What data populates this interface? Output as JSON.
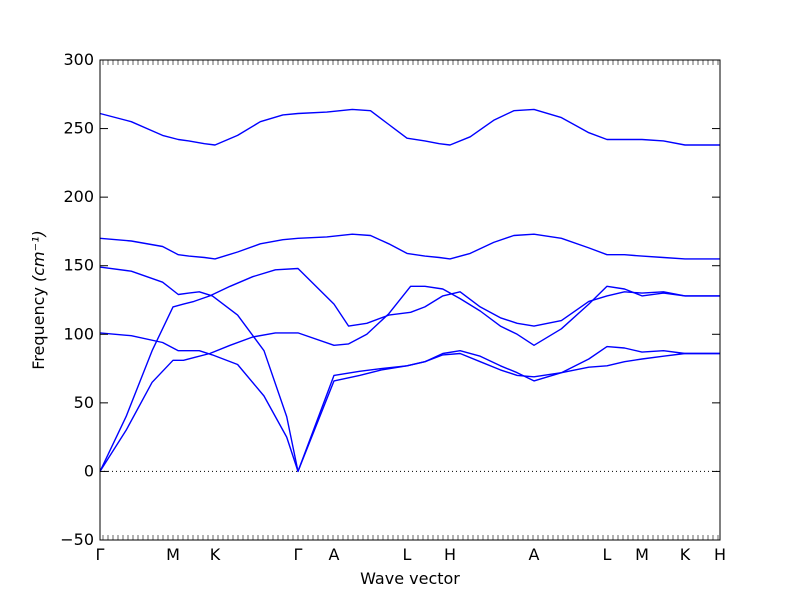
{
  "chart_data": {
    "type": "line",
    "xlabel": "Wave vector",
    "ylabel": "Frequency",
    "ylabel_unit": "(cm⁻¹)",
    "ylim": [
      -50,
      300
    ],
    "yticks": [
      -50,
      0,
      50,
      100,
      150,
      200,
      250,
      300
    ],
    "x_high_symmetry": [
      "Γ",
      "M",
      "K",
      "Γ",
      "A",
      "L",
      "H",
      "A",
      "L",
      "M",
      "K",
      "H"
    ],
    "zero_line": true,
    "grid": false,
    "line_color": "#0000ff",
    "series": [
      {
        "values": [
          [
            0,
            261
          ],
          [
            0.3,
            255
          ],
          [
            0.6,
            245
          ],
          [
            0.8,
            242
          ],
          [
            1.0,
            241
          ],
          [
            1.3,
            239
          ],
          [
            1.5,
            238
          ],
          [
            1.8,
            245
          ],
          [
            2.1,
            255
          ],
          [
            2.4,
            260
          ],
          [
            2.6,
            261
          ],
          [
            2.8,
            262
          ],
          [
            3.1,
            264
          ],
          [
            3.35,
            263
          ],
          [
            3.6,
            253
          ],
          [
            3.85,
            243
          ],
          [
            4.1,
            241
          ],
          [
            4.3,
            239
          ],
          [
            4.45,
            238
          ],
          [
            4.75,
            244
          ],
          [
            5.1,
            256
          ],
          [
            5.4,
            263
          ],
          [
            5.7,
            264
          ],
          [
            6.0,
            258
          ],
          [
            6.3,
            247
          ],
          [
            6.5,
            242
          ],
          [
            6.8,
            242
          ],
          [
            7.1,
            242
          ],
          [
            7.4,
            241
          ],
          [
            7.7,
            238
          ],
          [
            8.0,
            238
          ]
        ]
      },
      {
        "values": [
          [
            0,
            170
          ],
          [
            0.3,
            168
          ],
          [
            0.6,
            164
          ],
          [
            0.8,
            158
          ],
          [
            1.0,
            157
          ],
          [
            1.3,
            156
          ],
          [
            1.5,
            155
          ],
          [
            1.8,
            160
          ],
          [
            2.1,
            166
          ],
          [
            2.4,
            169
          ],
          [
            2.6,
            170
          ],
          [
            2.8,
            171
          ],
          [
            3.1,
            173
          ],
          [
            3.35,
            172
          ],
          [
            3.6,
            166
          ],
          [
            3.85,
            159
          ],
          [
            4.1,
            157
          ],
          [
            4.3,
            156
          ],
          [
            4.45,
            155
          ],
          [
            4.75,
            159
          ],
          [
            5.1,
            167
          ],
          [
            5.4,
            172
          ],
          [
            5.7,
            173
          ],
          [
            6.0,
            170
          ],
          [
            6.3,
            163
          ],
          [
            6.5,
            158
          ],
          [
            6.8,
            158
          ],
          [
            7.1,
            157
          ],
          [
            7.4,
            156
          ],
          [
            7.7,
            155
          ],
          [
            8.0,
            155
          ]
        ]
      },
      {
        "values": [
          [
            0,
            149
          ],
          [
            0.3,
            146
          ],
          [
            0.6,
            138
          ],
          [
            0.8,
            129
          ],
          [
            1.0,
            130
          ],
          [
            1.2,
            131
          ],
          [
            1.45,
            128
          ],
          [
            1.8,
            114
          ],
          [
            2.15,
            88
          ],
          [
            2.45,
            40
          ],
          [
            2.6,
            0
          ],
          [
            2.85,
            70
          ],
          [
            3.2,
            73
          ],
          [
            3.5,
            75
          ],
          [
            3.85,
            77
          ],
          [
            4.1,
            80
          ],
          [
            4.35,
            85
          ],
          [
            4.6,
            86
          ],
          [
            4.9,
            80
          ],
          [
            5.2,
            74
          ],
          [
            5.45,
            70
          ],
          [
            5.7,
            69
          ],
          [
            6.0,
            72
          ],
          [
            6.3,
            76
          ],
          [
            6.5,
            77
          ],
          [
            6.8,
            80
          ],
          [
            7.1,
            82
          ],
          [
            7.4,
            84
          ],
          [
            7.7,
            86
          ],
          [
            8.0,
            86
          ]
        ]
      },
      {
        "values": [
          [
            0,
            101
          ],
          [
            0.3,
            99
          ],
          [
            0.6,
            94
          ],
          [
            0.8,
            88
          ],
          [
            1.0,
            88
          ],
          [
            1.2,
            88
          ],
          [
            1.45,
            85
          ],
          [
            1.8,
            78
          ],
          [
            2.15,
            55
          ],
          [
            2.45,
            25
          ],
          [
            2.6,
            0
          ],
          [
            2.85,
            66
          ],
          [
            3.2,
            70
          ],
          [
            3.5,
            74
          ],
          [
            3.85,
            77
          ],
          [
            4.1,
            80
          ],
          [
            4.35,
            86
          ],
          [
            4.6,
            88
          ],
          [
            4.9,
            84
          ],
          [
            5.2,
            77
          ],
          [
            5.45,
            72
          ],
          [
            5.7,
            66
          ],
          [
            6.0,
            72
          ],
          [
            6.3,
            82
          ],
          [
            6.5,
            91
          ],
          [
            6.8,
            90
          ],
          [
            7.1,
            87
          ],
          [
            7.4,
            88
          ],
          [
            7.7,
            86
          ],
          [
            8.0,
            86
          ]
        ]
      },
      {
        "values": [
          [
            0,
            0
          ],
          [
            0.25,
            40
          ],
          [
            0.5,
            88
          ],
          [
            0.7,
            120
          ],
          [
            0.9,
            122
          ],
          [
            1.1,
            124
          ],
          [
            1.4,
            128
          ],
          [
            1.7,
            135
          ],
          [
            2.0,
            142
          ],
          [
            2.3,
            147
          ],
          [
            2.6,
            148
          ],
          [
            2.85,
            122
          ],
          [
            3.05,
            106
          ],
          [
            3.3,
            108
          ],
          [
            3.6,
            114
          ],
          [
            3.9,
            116
          ],
          [
            4.1,
            120
          ],
          [
            4.35,
            128
          ],
          [
            4.6,
            131
          ],
          [
            4.9,
            120
          ],
          [
            5.2,
            112
          ],
          [
            5.45,
            108
          ],
          [
            5.7,
            106
          ],
          [
            6.0,
            110
          ],
          [
            6.3,
            124
          ],
          [
            6.5,
            128
          ],
          [
            6.8,
            131
          ],
          [
            7.1,
            130
          ],
          [
            7.4,
            131
          ],
          [
            7.7,
            128
          ],
          [
            8.0,
            128
          ]
        ]
      },
      {
        "values": [
          [
            0,
            0
          ],
          [
            0.25,
            30
          ],
          [
            0.5,
            65
          ],
          [
            0.7,
            81
          ],
          [
            0.9,
            81
          ],
          [
            1.1,
            83
          ],
          [
            1.4,
            86
          ],
          [
            1.7,
            92
          ],
          [
            2.0,
            98
          ],
          [
            2.3,
            101
          ],
          [
            2.6,
            101
          ],
          [
            2.85,
            92
          ],
          [
            3.05,
            93
          ],
          [
            3.3,
            100
          ],
          [
            3.6,
            115
          ],
          [
            3.9,
            135
          ],
          [
            4.1,
            135
          ],
          [
            4.35,
            133
          ],
          [
            4.6,
            126
          ],
          [
            4.9,
            117
          ],
          [
            5.2,
            106
          ],
          [
            5.45,
            100
          ],
          [
            5.7,
            92
          ],
          [
            6.0,
            104
          ],
          [
            6.3,
            122
          ],
          [
            6.5,
            135
          ],
          [
            6.8,
            133
          ],
          [
            7.1,
            128
          ],
          [
            7.4,
            130
          ],
          [
            7.7,
            128
          ],
          [
            8.0,
            128
          ]
        ]
      }
    ]
  }
}
